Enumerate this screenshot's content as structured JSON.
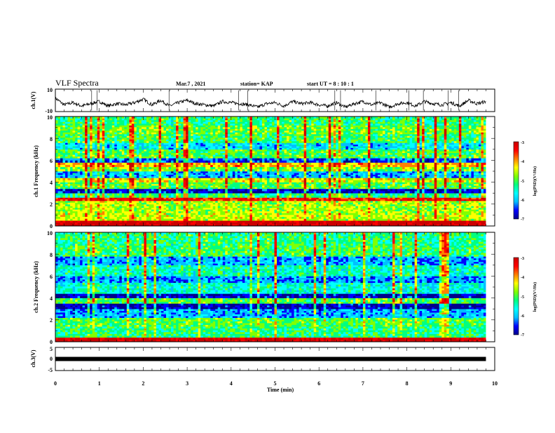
{
  "header": {
    "title": "VLF Spectra",
    "date": "Mar.7 , 2021",
    "station": "station= KAP",
    "start": "start UT =  8 : 10 : 1"
  },
  "colors": {
    "spectrum": [
      "#00008b",
      "#0000ff",
      "#00bfff",
      "#00ffff",
      "#00ff80",
      "#80ff00",
      "#ffff00",
      "#ff8000",
      "#ff0000",
      "#cc0000"
    ],
    "trace": "#000000"
  },
  "chart_data": [
    {
      "type": "line",
      "panel": "ch1-waveform",
      "ylabel": "ch.1(V)",
      "ylim": [
        -10,
        10
      ],
      "yticks": [
        "10",
        "-10"
      ],
      "xlim": [
        0,
        10
      ],
      "x": [
        0,
        0.2,
        0.4,
        0.6,
        0.8,
        1.0,
        1.2,
        1.4,
        1.6,
        1.8,
        2.0,
        2.2,
        2.4,
        2.6,
        2.8,
        3.0,
        3.2,
        3.4,
        3.6,
        3.8,
        4.0,
        4.2,
        4.4,
        4.6,
        4.8,
        5.0,
        5.2,
        5.4,
        5.6,
        5.8,
        6.0,
        6.2,
        6.4,
        6.6,
        6.8,
        7.0,
        7.2,
        7.4,
        7.6,
        7.8,
        8.0,
        8.2,
        8.4,
        8.6,
        8.8,
        9.0,
        9.2,
        9.4,
        9.6,
        9.8
      ],
      "y": [
        2,
        -4,
        -2,
        -5,
        -3,
        -1,
        -5,
        -3,
        -4,
        -2,
        1,
        -4,
        0,
        -5,
        -2,
        0,
        -3,
        -4,
        -5,
        -1,
        -2,
        -3,
        -4,
        -6,
        -3,
        -2,
        -5,
        -1,
        -3,
        -2,
        -4,
        -5,
        -2,
        -6,
        -3,
        -1,
        -4,
        -2,
        -6,
        -3,
        -2,
        -5,
        -1,
        -3,
        -4,
        -2,
        -5,
        0,
        -3,
        -1
      ]
    },
    {
      "type": "heatmap",
      "panel": "ch1-spectrogram",
      "ylabel": "ch.1 Frequency (kHz)",
      "ylim": [
        0,
        10
      ],
      "yticks": [
        "0",
        "2",
        "4",
        "6",
        "8",
        "10"
      ],
      "xlim": [
        0,
        10
      ],
      "colorbar": {
        "label": "log(PSD)(V²/Hz)",
        "range": [
          -7,
          -3
        ],
        "ticks": [
          "-3",
          "-4",
          "-5",
          "-6",
          "-7"
        ]
      },
      "band_levels_kHz": [
        {
          "f": [
            0,
            0.5
          ],
          "level": -3.2
        },
        {
          "f": [
            0.5,
            1.2
          ],
          "level": -4.6
        },
        {
          "f": [
            1.2,
            2.3
          ],
          "level": -4.7
        },
        {
          "f": [
            2.3,
            2.6
          ],
          "level": -3.6
        },
        {
          "f": [
            2.6,
            3.0
          ],
          "level": -5.2
        },
        {
          "f": [
            3.0,
            3.4
          ],
          "level": -6.6
        },
        {
          "f": [
            3.4,
            4.0
          ],
          "level": -5.0
        },
        {
          "f": [
            4.0,
            4.4
          ],
          "level": -4.5
        },
        {
          "f": [
            4.4,
            5.0
          ],
          "level": -6.0
        },
        {
          "f": [
            5.0,
            5.4
          ],
          "level": -4.8
        },
        {
          "f": [
            5.4,
            5.8
          ],
          "level": -4.2
        },
        {
          "f": [
            5.8,
            6.2
          ],
          "level": -6.3
        },
        {
          "f": [
            6.2,
            7.0
          ],
          "level": -5.0
        },
        {
          "f": [
            7.0,
            7.6
          ],
          "level": -5.8
        },
        {
          "f": [
            7.6,
            8.4
          ],
          "level": -5.1
        },
        {
          "f": [
            8.4,
            9.2
          ],
          "level": -4.9
        },
        {
          "f": [
            9.2,
            10.0
          ],
          "level": -5.2
        }
      ]
    },
    {
      "type": "heatmap",
      "panel": "ch2-spectrogram",
      "ylabel": "ch.2 Frequency (kHz)",
      "ylim": [
        0,
        10
      ],
      "yticks": [
        "0",
        "2",
        "4",
        "6",
        "8",
        "10"
      ],
      "xlim": [
        0,
        10
      ],
      "colorbar": {
        "label": "log(PSD)(V²/Hz)",
        "range": [
          -7,
          -3
        ],
        "ticks": [
          "-3",
          "-4",
          "-5",
          "-6",
          "-7"
        ]
      },
      "band_levels_kHz": [
        {
          "f": [
            0,
            0.4
          ],
          "level": -3.2
        },
        {
          "f": [
            0.4,
            1.4
          ],
          "level": -5.2
        },
        {
          "f": [
            1.4,
            2.2
          ],
          "level": -5.0
        },
        {
          "f": [
            2.2,
            3.0
          ],
          "level": -6.0
        },
        {
          "f": [
            3.0,
            3.5
          ],
          "level": -6.7
        },
        {
          "f": [
            3.5,
            4.0
          ],
          "level": -5.0
        },
        {
          "f": [
            4.0,
            4.4
          ],
          "level": -6.6
        },
        {
          "f": [
            4.4,
            5.4
          ],
          "level": -5.5
        },
        {
          "f": [
            5.4,
            6.0
          ],
          "level": -6.1
        },
        {
          "f": [
            6.0,
            7.0
          ],
          "level": -5.4
        },
        {
          "f": [
            7.0,
            7.8
          ],
          "level": -6.0
        },
        {
          "f": [
            7.8,
            8.8
          ],
          "level": -5.1
        },
        {
          "f": [
            8.8,
            10.0
          ],
          "level": -5.2
        }
      ]
    },
    {
      "type": "line",
      "panel": "ch3-waveform",
      "ylabel": "ch.3(V)",
      "ylim": [
        -5,
        5
      ],
      "yticks": [
        "5",
        "0",
        "-5"
      ],
      "xlim": [
        0,
        10
      ],
      "x": [
        0,
        9.8
      ],
      "y": [
        0,
        0
      ]
    }
  ],
  "xaxis": {
    "label": "Time (min)",
    "ticks": [
      "0",
      "1",
      "2",
      "3",
      "4",
      "5",
      "6",
      "7",
      "8",
      "9",
      "10"
    ]
  }
}
